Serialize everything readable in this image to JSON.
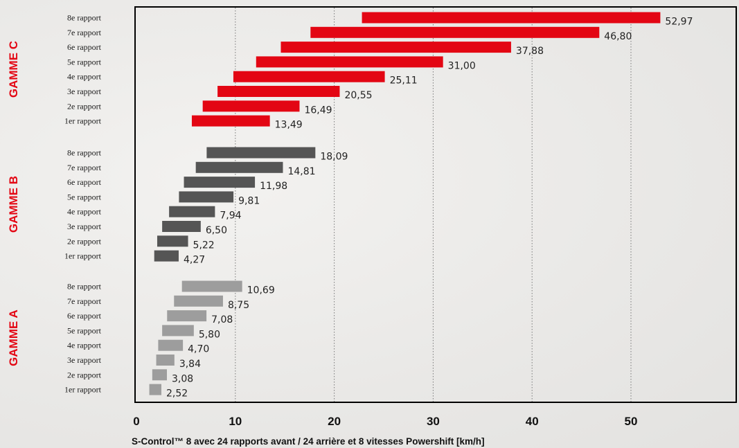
{
  "chart_data": {
    "type": "bar",
    "orientation": "horizontal",
    "subtype": "range",
    "xlabel": "S-Control™ 8 avec 24 rapports avant / 24 arrière et 8 vitesses Powershift [km/h]",
    "xlim": [
      0,
      60
    ],
    "xticks": [
      "0",
      "10",
      "20",
      "30",
      "40",
      "50"
    ],
    "grid": "vertical dotted",
    "groups": [
      {
        "name": "GAMME C",
        "color": "#e30613",
        "gears": [
          "8e rapport",
          "7e rapport",
          "6e rapport",
          "5e rapport",
          "4e rapport",
          "3e rapport",
          "2e rapport",
          "1er rapport"
        ],
        "start": [
          22.8,
          17.6,
          14.6,
          12.1,
          9.8,
          8.2,
          6.7,
          5.6
        ],
        "end": [
          52.97,
          46.8,
          37.88,
          31.0,
          25.11,
          20.55,
          16.49,
          13.49
        ],
        "labels": [
          "52,97",
          "46,80",
          "37,88",
          "31,00",
          "25,11",
          "20,55",
          "16,49",
          "13,49"
        ]
      },
      {
        "name": "GAMME B",
        "color": "#555555",
        "gears": [
          "8e rapport",
          "7e rapport",
          "6e rapport",
          "5e rapport",
          "4e rapport",
          "3e rapport",
          "2e rapport",
          "1er rapport"
        ],
        "start": [
          7.1,
          6.0,
          4.8,
          4.3,
          3.3,
          2.6,
          2.1,
          1.8
        ],
        "end": [
          18.09,
          14.81,
          11.98,
          9.81,
          7.94,
          6.5,
          5.22,
          4.27
        ],
        "labels": [
          "18,09",
          "14,81",
          "11,98",
          "9,81",
          "7,94",
          "6,50",
          "5,22",
          "4,27"
        ]
      },
      {
        "name": "GAMME A",
        "color": "#9d9d9d",
        "gears": [
          "8e rapport",
          "7e rapport",
          "6e rapport",
          "5e rapport",
          "4e rapport",
          "3e rapport",
          "2e rapport",
          "1er rapport"
        ],
        "start": [
          4.6,
          3.8,
          3.1,
          2.6,
          2.2,
          2.0,
          1.6,
          1.3
        ],
        "end": [
          10.69,
          8.75,
          7.08,
          5.8,
          4.7,
          3.84,
          3.08,
          2.52
        ],
        "labels": [
          "10,69",
          "8,75",
          "7,08",
          "5,80",
          "4,70",
          "3,84",
          "3,08",
          "2,52"
        ]
      }
    ]
  },
  "colors": {
    "range_label": "#e30613",
    "grid": "#777777",
    "frame": "#000000"
  }
}
